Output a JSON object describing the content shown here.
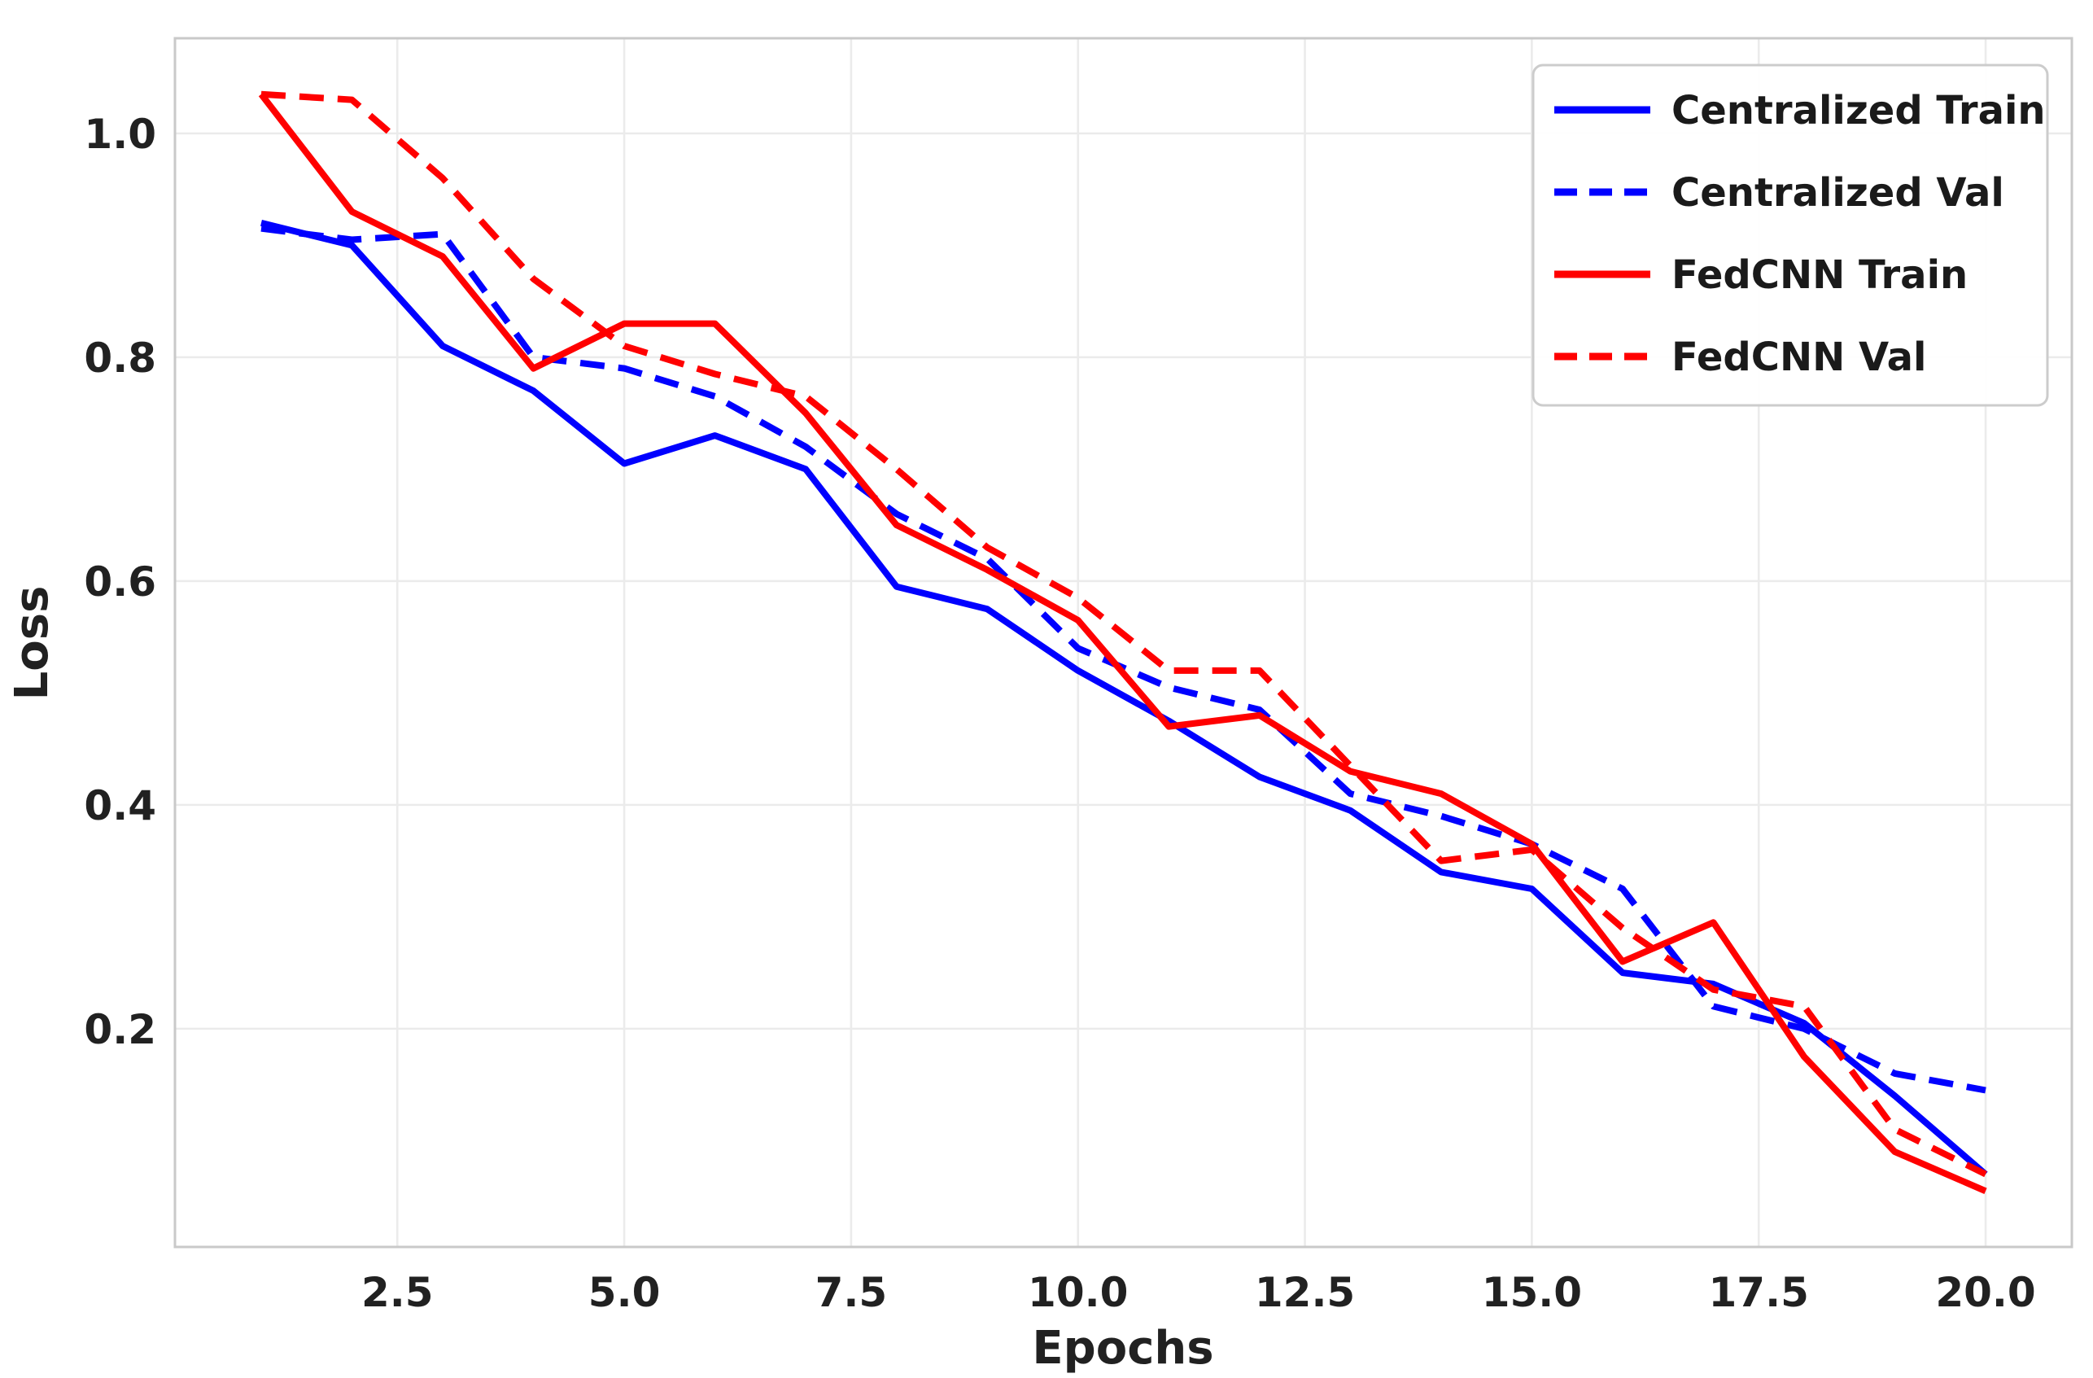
{
  "chart_data": {
    "type": "line",
    "title": "",
    "xlabel": "Epochs",
    "ylabel": "Loss",
    "x": [
      1,
      2,
      3,
      4,
      5,
      6,
      7,
      8,
      9,
      10,
      11,
      12,
      13,
      14,
      15,
      16,
      17,
      18,
      19,
      20
    ],
    "series": [
      {
        "name": "Centralized Train",
        "color": "#0000ff",
        "line_style": "solid",
        "values": [
          0.92,
          0.9,
          0.81,
          0.77,
          0.705,
          0.73,
          0.7,
          0.595,
          0.575,
          0.52,
          0.475,
          0.425,
          0.395,
          0.34,
          0.325,
          0.25,
          0.24,
          0.205,
          0.14,
          0.07
        ]
      },
      {
        "name": "Centralized Val",
        "color": "#0000ff",
        "line_style": "dashed",
        "values": [
          0.915,
          0.905,
          0.91,
          0.8,
          0.79,
          0.765,
          0.72,
          0.66,
          0.62,
          0.54,
          0.505,
          0.485,
          0.41,
          0.39,
          0.365,
          0.325,
          0.22,
          0.2,
          0.16,
          0.145
        ]
      },
      {
        "name": "FedCNN Train",
        "color": "#ff0000",
        "line_style": "solid",
        "values": [
          1.035,
          0.93,
          0.89,
          0.79,
          0.83,
          0.83,
          0.75,
          0.65,
          0.61,
          0.565,
          0.47,
          0.48,
          0.43,
          0.41,
          0.365,
          0.26,
          0.295,
          0.175,
          0.09,
          0.055
        ]
      },
      {
        "name": "FedCNN Val",
        "color": "#ff0000",
        "line_style": "dashed",
        "values": [
          1.035,
          1.03,
          0.96,
          0.87,
          0.81,
          0.785,
          0.765,
          0.7,
          0.63,
          0.585,
          0.52,
          0.52,
          0.435,
          0.35,
          0.36,
          0.29,
          0.235,
          0.22,
          0.11,
          0.07
        ]
      }
    ],
    "x_tick_labels": [
      "2.5",
      "5.0",
      "7.5",
      "10.0",
      "12.5",
      "15.0",
      "17.5",
      "20.0"
    ],
    "x_tick_values": [
      2.5,
      5.0,
      7.5,
      10.0,
      12.5,
      15.0,
      17.5,
      20.0
    ],
    "y_tick_labels": [
      "0.2",
      "0.4",
      "0.6",
      "0.8",
      "1.0"
    ],
    "y_tick_values": [
      0.2,
      0.4,
      0.6,
      0.8,
      1.0
    ],
    "xlim": [
      0.05,
      20.95
    ],
    "ylim": [
      0.005,
      1.085
    ],
    "grid": true,
    "legend_position": "upper right",
    "colors": {
      "grid": "#ebebeb",
      "spine": "#c9c9c9",
      "text": "#212121",
      "background": "#ffffff",
      "legend_border": "#cccccc",
      "legend_fill": "#ffffff"
    }
  }
}
